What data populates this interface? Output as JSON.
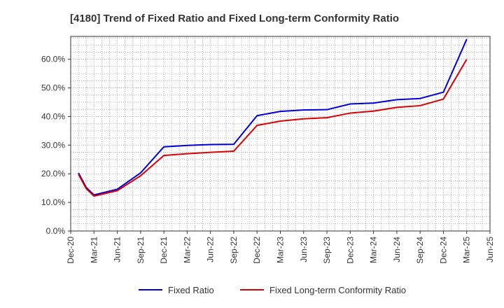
{
  "chart_data": {
    "type": "line",
    "title": "[4180]  Trend of Fixed Ratio and Fixed Long-term Conformity Ratio",
    "xlabel": "",
    "ylabel": "",
    "x_ticks": [
      "Dec-20",
      "Mar-21",
      "Jun-21",
      "Sep-21",
      "Dec-21",
      "Mar-22",
      "Jun-22",
      "Sep-22",
      "Dec-22",
      "Mar-23",
      "Jun-23",
      "Sep-23",
      "Dec-23",
      "Mar-24",
      "Jun-24",
      "Sep-24",
      "Dec-24",
      "Mar-25",
      "Jun-25"
    ],
    "y_ticks": [
      "0.0%",
      "10.0%",
      "20.0%",
      "30.0%",
      "40.0%",
      "50.0%",
      "60.0%"
    ],
    "ylim": [
      0,
      68
    ],
    "grid": true,
    "legend_position": "bottom",
    "x": [
      "Jan-21",
      "Feb-21",
      "Mar-21",
      "Jun-21",
      "Sep-21",
      "Dec-21",
      "Mar-22",
      "Jun-22",
      "Sep-22",
      "Dec-22",
      "Mar-23",
      "Jun-23",
      "Sep-23",
      "Dec-23",
      "Mar-24",
      "Jun-24",
      "Sep-24",
      "Dec-24",
      "Mar-25"
    ],
    "series": [
      {
        "name": "Fixed Ratio",
        "color": "#0000dd",
        "values": [
          20.3,
          15.2,
          12.6,
          14.6,
          20.3,
          29.4,
          29.9,
          30.2,
          30.3,
          40.3,
          41.8,
          42.3,
          42.4,
          44.4,
          44.7,
          45.9,
          46.3,
          48.5,
          67.0
        ]
      },
      {
        "name": "Fixed Long-term Conformity Ratio",
        "color": "#dd0000",
        "values": [
          19.8,
          14.8,
          12.2,
          14.1,
          19.3,
          26.4,
          27.0,
          27.5,
          27.9,
          36.9,
          38.4,
          39.2,
          39.6,
          41.2,
          41.9,
          43.2,
          43.8,
          46.1,
          60.0
        ]
      }
    ]
  }
}
